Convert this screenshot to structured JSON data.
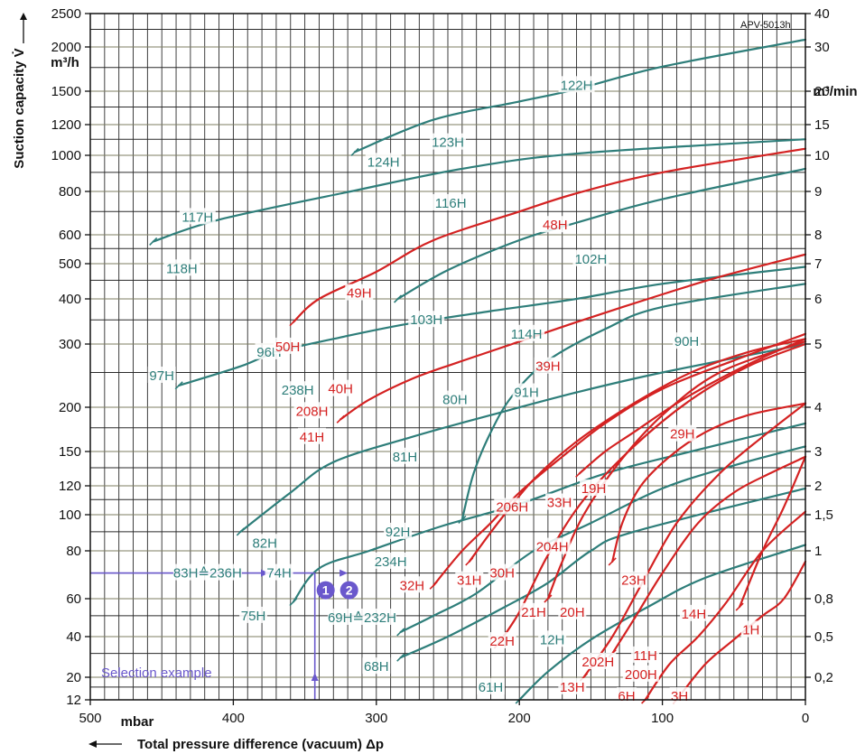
{
  "chart_data": {
    "type": "line",
    "figure_code": "APV-5013h",
    "x_axis": {
      "label": "Total pressure difference (vacuum) Δp",
      "unit": "mbar",
      "range": [
        500,
        0
      ],
      "ticks": [
        "500",
        "400",
        "300",
        "200",
        "100",
        "0"
      ],
      "tick_values": [
        500,
        400,
        300,
        200,
        100,
        0
      ]
    },
    "y_axis_left": {
      "label": "Suction capacity V̇",
      "unit": "m³/h",
      "ticks": [
        "2500",
        "2000",
        "1500",
        "1200",
        "1000",
        "800",
        "600",
        "500",
        "400",
        "300",
        "200",
        "150",
        "120",
        "100",
        "80",
        "60",
        "40",
        "20",
        "12"
      ],
      "tick_values": [
        2500,
        2000,
        1500,
        1200,
        1000,
        800,
        600,
        500,
        400,
        300,
        200,
        150,
        120,
        100,
        80,
        60,
        40,
        20,
        12
      ]
    },
    "y_axis_right": {
      "unit": "m³/min",
      "ticks": [
        "40",
        "30",
        "20",
        "15",
        "10",
        "9",
        "8",
        "7",
        "6",
        "5",
        "4",
        "3",
        "2",
        "1,5",
        "1",
        "0,8",
        "0,5",
        "0,2"
      ],
      "tick_values": [
        2500,
        2000,
        1500,
        1200,
        1000,
        800,
        600,
        500,
        400,
        300,
        200,
        150,
        120,
        100,
        80,
        60,
        40,
        20
      ]
    },
    "grid": true,
    "colors": {
      "teal": "#2e7e7a",
      "red": "#d42222",
      "selection": "#6a58cc",
      "grid_h_alt": "#7d7d62"
    },
    "series": [
      {
        "name": "118H",
        "color": "teal",
        "points": [
          [
            456,
            575
          ],
          [
            410,
            663
          ],
          [
            318,
            800
          ],
          [
            240,
            920
          ],
          [
            160,
            1010
          ],
          [
            0,
            1100
          ]
        ]
      },
      {
        "name": "124H",
        "color": "teal",
        "points": [
          [
            315,
            1020
          ],
          [
            260,
            1240
          ],
          [
            200,
            1400
          ],
          [
            160,
            1520
          ],
          [
            100,
            1760
          ],
          [
            0,
            2100
          ]
        ]
      },
      {
        "name": "50H",
        "color": "red",
        "points": [
          [
            358,
            345
          ],
          [
            340,
            400
          ],
          [
            300,
            475
          ],
          [
            260,
            580
          ],
          [
            200,
            700
          ],
          [
            160,
            790
          ],
          [
            100,
            900
          ],
          [
            0,
            1040
          ]
        ]
      },
      {
        "name": "103H",
        "color": "teal",
        "points": [
          [
            285,
            400
          ],
          [
            250,
            480
          ],
          [
            200,
            580
          ],
          [
            160,
            650
          ],
          [
            100,
            760
          ],
          [
            0,
            920
          ]
        ]
      },
      {
        "name": "97H",
        "color": "teal",
        "points": [
          [
            438,
            230
          ],
          [
            395,
            260
          ],
          [
            370,
            285
          ],
          [
            330,
            310
          ],
          [
            280,
            340
          ],
          [
            220,
            370
          ],
          [
            160,
            400
          ],
          [
            100,
            440
          ],
          [
            0,
            490
          ]
        ]
      },
      {
        "name": "41H",
        "color": "red",
        "points": [
          [
            325,
            185
          ],
          [
            305,
            210
          ],
          [
            275,
            240
          ],
          [
            245,
            265
          ],
          [
            205,
            300
          ],
          [
            160,
            345
          ],
          [
            110,
            400
          ],
          [
            60,
            460
          ],
          [
            0,
            530
          ]
        ]
      },
      {
        "name": "81H",
        "color": "teal",
        "points": [
          [
            395,
            90
          ],
          [
            360,
            115
          ],
          [
            330,
            140
          ],
          [
            275,
            165
          ],
          [
            220,
            190
          ],
          [
            160,
            220
          ],
          [
            100,
            250
          ],
          [
            0,
            300
          ]
        ]
      },
      {
        "name": "92H",
        "color": "teal",
        "points": [
          [
            240,
            97
          ],
          [
            232,
            130
          ],
          [
            220,
            170
          ],
          [
            205,
            215
          ],
          [
            180,
            270
          ],
          [
            140,
            330
          ],
          [
            100,
            380
          ],
          [
            0,
            440
          ]
        ]
      },
      {
        "name": "75H",
        "color": "teal",
        "points": [
          [
            358,
            58
          ],
          [
            340,
            72
          ],
          [
            305,
            80
          ],
          [
            255,
            93
          ],
          [
            200,
            107
          ],
          [
            140,
            130
          ],
          [
            80,
            150
          ],
          [
            0,
            180
          ]
        ]
      },
      {
        "name": "69H≙232H",
        "color": "teal",
        "points": [
          [
            283,
            42
          ],
          [
            260,
            50
          ],
          [
            230,
            62
          ],
          [
            190,
            80
          ],
          [
            150,
            95
          ],
          [
            100,
            118
          ],
          [
            50,
            137
          ],
          [
            0,
            155
          ]
        ]
      },
      {
        "name": "68H",
        "color": "teal",
        "points": [
          [
            283,
            28
          ],
          [
            250,
            40
          ],
          [
            210,
            55
          ],
          [
            180,
            66
          ],
          [
            150,
            80
          ],
          [
            120,
            90
          ],
          [
            0,
            118
          ]
        ]
      },
      {
        "name": "61H",
        "color": "teal",
        "points": [
          [
            200,
            12
          ],
          [
            180,
            22
          ],
          [
            150,
            38
          ],
          [
            110,
            55
          ],
          [
            70,
            68
          ],
          [
            0,
            83
          ]
        ]
      },
      {
        "name": "32H",
        "color": "red",
        "points": [
          [
            260,
            65
          ],
          [
            240,
            80
          ],
          [
            220,
            95
          ],
          [
            200,
            115
          ],
          [
            170,
            145
          ],
          [
            140,
            180
          ],
          [
            100,
            225
          ],
          [
            50,
            270
          ],
          [
            0,
            320
          ]
        ]
      },
      {
        "name": "30H",
        "color": "red",
        "points": [
          [
            235,
            75
          ],
          [
            215,
            95
          ],
          [
            190,
            125
          ],
          [
            160,
            160
          ],
          [
            120,
            205
          ],
          [
            80,
            250
          ],
          [
            40,
            285
          ],
          [
            0,
            310
          ]
        ]
      },
      {
        "name": "22H",
        "color": "red",
        "points": [
          [
            215,
            35
          ],
          [
            200,
            52
          ],
          [
            180,
            78
          ],
          [
            155,
            110
          ],
          [
            120,
            155
          ],
          [
            80,
            210
          ],
          [
            40,
            260
          ],
          [
            0,
            300
          ]
        ]
      },
      {
        "name": "20H",
        "color": "red",
        "points": [
          [
            180,
            60
          ],
          [
            170,
            75
          ],
          [
            155,
            100
          ],
          [
            130,
            140
          ],
          [
            100,
            190
          ],
          [
            60,
            250
          ],
          [
            0,
            305
          ]
        ]
      },
      {
        "name": "33H",
        "color": "red",
        "points": [
          [
            158,
            130
          ],
          [
            140,
            150
          ],
          [
            120,
            170
          ],
          [
            90,
            205
          ],
          [
            60,
            240
          ],
          [
            30,
            275
          ],
          [
            0,
            310
          ]
        ]
      },
      {
        "name": "23H",
        "color": "red",
        "points": [
          [
            135,
            75
          ],
          [
            128,
            95
          ],
          [
            115,
            120
          ],
          [
            95,
            145
          ],
          [
            70,
            170
          ],
          [
            40,
            190
          ],
          [
            0,
            205
          ]
        ]
      },
      {
        "name": "13H",
        "color": "red",
        "points": [
          [
            155,
            20
          ],
          [
            135,
            40
          ],
          [
            115,
            65
          ],
          [
            90,
            95
          ],
          [
            60,
            130
          ],
          [
            30,
            165
          ],
          [
            0,
            205
          ]
        ]
      },
      {
        "name": "11H",
        "color": "red",
        "points": [
          [
            135,
            30
          ],
          [
            120,
            48
          ],
          [
            100,
            70
          ],
          [
            75,
            95
          ],
          [
            50,
            115
          ],
          [
            25,
            130
          ],
          [
            0,
            145
          ]
        ]
      },
      {
        "name": "6H",
        "color": "red",
        "points": [
          [
            112,
            12
          ],
          [
            95,
            25
          ],
          [
            75,
            40
          ],
          [
            55,
            58
          ],
          [
            30,
            80
          ],
          [
            0,
            102
          ]
        ]
      },
      {
        "name": "3H",
        "color": "red",
        "points": [
          [
            90,
            12
          ],
          [
            70,
            25
          ],
          [
            50,
            38
          ],
          [
            30,
            50
          ],
          [
            15,
            60
          ],
          [
            0,
            75
          ]
        ]
      },
      {
        "name": "1H",
        "color": "red",
        "points": [
          [
            46,
            55
          ],
          [
            30,
            80
          ],
          [
            15,
            105
          ],
          [
            0,
            145
          ]
        ]
      }
    ],
    "labels": [
      {
        "text": "122H",
        "color": "teal",
        "x": 160,
        "y": 1560
      },
      {
        "text": "123H",
        "color": "teal",
        "x": 250,
        "y": 1080
      },
      {
        "text": "124H",
        "color": "teal",
        "x": 295,
        "y": 960
      },
      {
        "text": "117H",
        "color": "teal",
        "x": 425,
        "y": 675
      },
      {
        "text": "116H",
        "color": "teal",
        "x": 248,
        "y": 740
      },
      {
        "text": "48H",
        "color": "red",
        "x": 175,
        "y": 640
      },
      {
        "text": "102H",
        "color": "teal",
        "x": 150,
        "y": 515
      },
      {
        "text": "118H",
        "color": "teal",
        "x": 436,
        "y": 485
      },
      {
        "text": "49H",
        "color": "red",
        "x": 312,
        "y": 415
      },
      {
        "text": "103H",
        "color": "teal",
        "x": 265,
        "y": 350
      },
      {
        "text": "114H",
        "color": "teal",
        "x": 195,
        "y": 320
      },
      {
        "text": "90H",
        "color": "teal",
        "x": 83,
        "y": 305
      },
      {
        "text": "96H",
        "color": "teal",
        "x": 375,
        "y": 285
      },
      {
        "text": "50H",
        "color": "red",
        "x": 362,
        "y": 295
      },
      {
        "text": "39H",
        "color": "red",
        "x": 180,
        "y": 260
      },
      {
        "text": "97H",
        "color": "teal",
        "x": 450,
        "y": 245
      },
      {
        "text": "238H",
        "color": "teal",
        "x": 355,
        "y": 223
      },
      {
        "text": "40H",
        "color": "red",
        "x": 325,
        "y": 225
      },
      {
        "text": "91H",
        "color": "teal",
        "x": 195,
        "y": 220
      },
      {
        "text": "80H",
        "color": "teal",
        "x": 245,
        "y": 210
      },
      {
        "text": "208H",
        "color": "red",
        "x": 345,
        "y": 195
      },
      {
        "text": "29H",
        "color": "red",
        "x": 86,
        "y": 168
      },
      {
        "text": "41H",
        "color": "red",
        "x": 345,
        "y": 165
      },
      {
        "text": "81H",
        "color": "teal",
        "x": 280,
        "y": 145
      },
      {
        "text": "19H",
        "color": "red",
        "x": 148,
        "y": 118
      },
      {
        "text": "33H",
        "color": "red",
        "x": 172,
        "y": 108
      },
      {
        "text": "206H",
        "color": "red",
        "x": 205,
        "y": 105
      },
      {
        "text": "92H",
        "color": "teal",
        "x": 285,
        "y": 90
      },
      {
        "text": "82H",
        "color": "teal",
        "x": 378,
        "y": 84
      },
      {
        "text": "204H",
        "color": "red",
        "x": 177,
        "y": 82
      },
      {
        "text": "234H",
        "color": "teal",
        "x": 290,
        "y": 75
      },
      {
        "text": "83H≙236H",
        "color": "teal",
        "x": 418,
        "y": 70
      },
      {
        "text": "74H",
        "color": "teal",
        "x": 368,
        "y": 70
      },
      {
        "text": "23H",
        "color": "red",
        "x": 120,
        "y": 67
      },
      {
        "text": "31H",
        "color": "red",
        "x": 235,
        "y": 67
      },
      {
        "text": "30H",
        "color": "red",
        "x": 212,
        "y": 70
      },
      {
        "text": "32H",
        "color": "red",
        "x": 275,
        "y": 65
      },
      {
        "text": "75H",
        "color": "teal",
        "x": 386,
        "y": 50
      },
      {
        "text": "69H≙232H",
        "color": "teal",
        "x": 310,
        "y": 49
      },
      {
        "text": "21H",
        "color": "red",
        "x": 190,
        "y": 52
      },
      {
        "text": "20H",
        "color": "red",
        "x": 163,
        "y": 52
      },
      {
        "text": "14H",
        "color": "red",
        "x": 78,
        "y": 51
      },
      {
        "text": "1H",
        "color": "red",
        "x": 38,
        "y": 43
      },
      {
        "text": "22H",
        "color": "red",
        "x": 212,
        "y": 37
      },
      {
        "text": "12H",
        "color": "teal",
        "x": 177,
        "y": 38
      },
      {
        "text": "68H",
        "color": "teal",
        "x": 300,
        "y": 24
      },
      {
        "text": "202H",
        "color": "red",
        "x": 145,
        "y": 26
      },
      {
        "text": "11H",
        "color": "red",
        "x": 112,
        "y": 29
      },
      {
        "text": "200H",
        "color": "red",
        "x": 115,
        "y": 21
      },
      {
        "text": "13H",
        "color": "red",
        "x": 163,
        "y": 16
      },
      {
        "text": "61H",
        "color": "teal",
        "x": 220,
        "y": 16
      },
      {
        "text": "6H",
        "color": "red",
        "x": 125,
        "y": 13
      },
      {
        "text": "3H",
        "color": "red",
        "x": 88,
        "y": 13
      }
    ],
    "selection_example": {
      "label": "Selection example",
      "markers": [
        "1",
        "2"
      ],
      "delta_p": 343,
      "flow": 70
    }
  }
}
